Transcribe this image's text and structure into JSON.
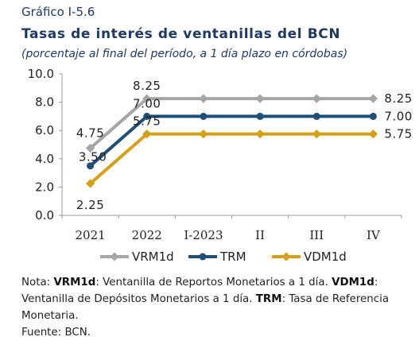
{
  "header": {
    "kicker": "Gráfico I-5.6",
    "title": "Tasas de interés de ventanillas del BCN",
    "subtitle": "(porcentaje al final del período, a 1 día plazo en córdobas)"
  },
  "chart_data": {
    "type": "line",
    "categories": [
      "2021",
      "2022",
      "I-2023",
      "II",
      "III",
      "IV"
    ],
    "ylim": [
      0,
      10
    ],
    "yticks": [
      "0.0",
      "2.0",
      "4.0",
      "6.0",
      "8.0",
      "10.0"
    ],
    "grid": false,
    "legend_placement": "bottom",
    "series": [
      {
        "name": "VRM1d",
        "color": "#a6a6a6",
        "values": [
          4.75,
          8.25,
          8.25,
          8.25,
          8.25,
          8.25
        ],
        "labels": [
          "4.75",
          "8.25",
          "",
          "",
          "",
          "8.25"
        ]
      },
      {
        "name": "TRM",
        "color": "#1f4e79",
        "values": [
          3.5,
          7.0,
          7.0,
          7.0,
          7.0,
          7.0
        ],
        "labels": [
          "3.50",
          "7.00",
          "",
          "",
          "",
          "7.00"
        ]
      },
      {
        "name": "VDM1d",
        "color": "#d4a017",
        "values": [
          2.25,
          5.75,
          5.75,
          5.75,
          5.75,
          5.75
        ],
        "labels": [
          "2.25",
          "5.75",
          "",
          "",
          "",
          "5.75"
        ]
      }
    ]
  },
  "notes": {
    "nota_prefix": "Nota: ",
    "vrm_abbr": "VRM1d",
    "vrm_text": ": Ventanilla de Reportos Monetarios a 1 día. ",
    "vdm_abbr": "VDM1d",
    "vdm_text": ": Ventanilla de Depósitos Monetarios a 1 día. ",
    "trm_abbr": "TRM",
    "trm_text": ": Tasa de Referencia Monetaria.",
    "source": "Fuente: BCN."
  }
}
